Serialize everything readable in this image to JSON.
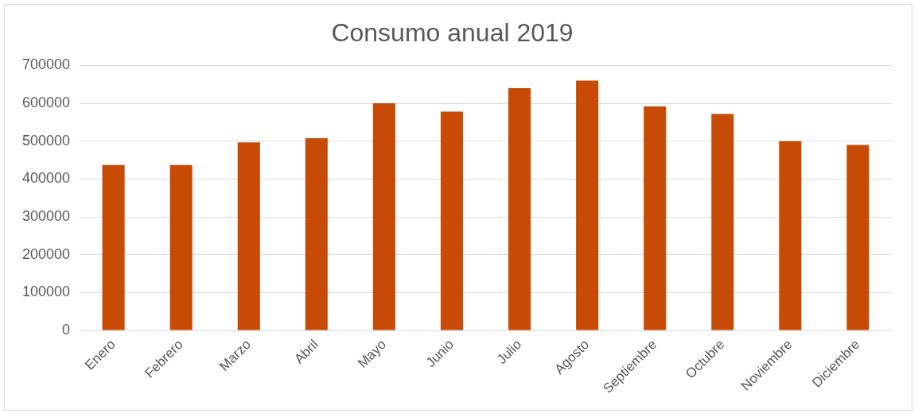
{
  "chart_data": {
    "type": "bar",
    "title": "Consumo anual 2019",
    "categories": [
      "Enero",
      "Febrero",
      "Marzo",
      "Abril",
      "Mayo",
      "Junio",
      "Julio",
      "Agosto",
      "Septiembre",
      "Octubre",
      "Noviembre",
      "Diciembre"
    ],
    "values": [
      437000,
      437000,
      497000,
      508000,
      600000,
      578000,
      640000,
      660000,
      592000,
      572000,
      500000,
      490000
    ],
    "color": "#c84b05",
    "ylim": [
      0,
      700000
    ],
    "yticks": [
      0,
      100000,
      200000,
      300000,
      400000,
      500000,
      600000,
      700000
    ],
    "grid": "y"
  }
}
